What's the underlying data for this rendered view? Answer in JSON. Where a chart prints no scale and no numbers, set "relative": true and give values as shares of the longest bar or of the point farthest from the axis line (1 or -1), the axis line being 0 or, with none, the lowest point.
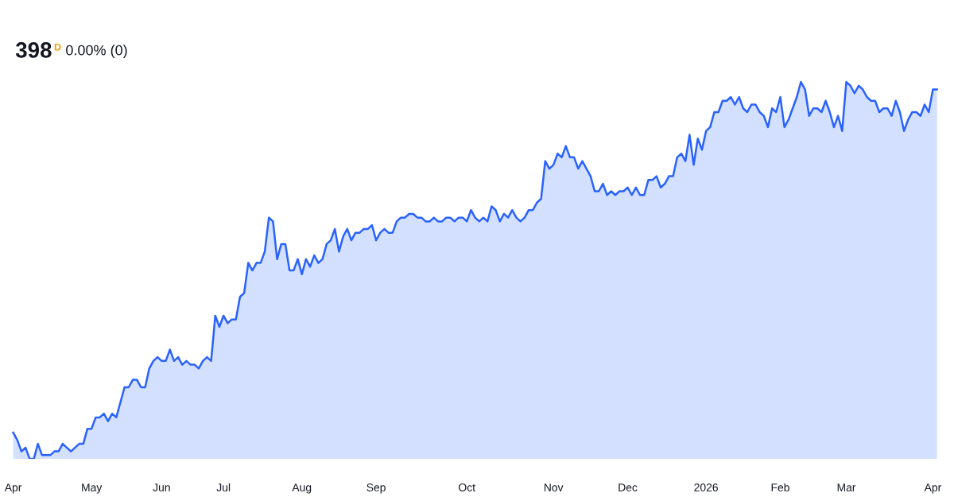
{
  "chart_data": {
    "type": "area",
    "title": "398",
    "subtitle": "0.00% (0)",
    "annotations": [
      "D"
    ],
    "relative": true,
    "tick_labels": "x",
    "categories": [
      "Apr",
      null,
      null,
      null,
      null,
      null,
      null,
      null,
      null,
      null,
      null,
      null,
      null,
      null,
      null,
      null,
      null,
      null,
      null,
      "May",
      null,
      null,
      null,
      null,
      null,
      null,
      null,
      null,
      null,
      null,
      null,
      null,
      null,
      null,
      null,
      null,
      "Jun",
      null,
      null,
      null,
      null,
      null,
      null,
      null,
      null,
      null,
      null,
      null,
      null,
      null,
      null,
      "Jul",
      null,
      null,
      null,
      null,
      null,
      null,
      null,
      null,
      null,
      null,
      null,
      null,
      null,
      null,
      null,
      null,
      null,
      null,
      "Aug",
      null,
      null,
      null,
      null,
      null,
      null,
      null,
      null,
      null,
      null,
      null,
      null,
      null,
      null,
      null,
      null,
      null,
      "Sep",
      null,
      null,
      null,
      null,
      null,
      null,
      null,
      null,
      null,
      null,
      null,
      null,
      null,
      null,
      null,
      null,
      null,
      null,
      null,
      null,
      null,
      "Oct",
      null,
      null,
      null,
      null,
      null,
      null,
      null,
      null,
      null,
      null,
      null,
      null,
      null,
      null,
      null,
      null,
      null,
      null,
      null,
      null,
      "Nov",
      null,
      null,
      null,
      null,
      null,
      null,
      null,
      null,
      null,
      null,
      null,
      null,
      null,
      null,
      null,
      null,
      null,
      "Dec",
      null,
      null,
      null,
      null,
      null,
      null,
      null,
      null,
      null,
      null,
      null,
      null,
      null,
      null,
      null,
      null,
      null,
      null,
      "2026",
      null,
      null,
      null,
      null,
      null,
      null,
      null,
      null,
      null,
      null,
      null,
      null,
      null,
      null,
      null,
      null,
      null,
      "Feb",
      null,
      null,
      null,
      null,
      null,
      null,
      null,
      null,
      null,
      null,
      null,
      null,
      null,
      null,
      null,
      "Mar",
      null,
      null,
      null,
      null,
      null,
      null,
      null,
      null,
      null,
      null,
      null,
      null,
      null,
      null,
      null,
      null,
      null,
      null,
      null,
      null,
      "Apr",
      null
    ],
    "series": [
      {
        "color": "#2962ff",
        "values": [
          0.07,
          0.05,
          0.02,
          0.03,
          0,
          0,
          0.04,
          0.01,
          0.01,
          0.01,
          0.02,
          0.02,
          0.04,
          0.03,
          0.02,
          0.03,
          0.04,
          0.04,
          0.08,
          0.08,
          0.11,
          0.11,
          0.12,
          0.1,
          0.12,
          0.11,
          0.15,
          0.19,
          0.19,
          0.21,
          0.21,
          0.19,
          0.19,
          0.24,
          0.26,
          0.27,
          0.26,
          0.26,
          0.29,
          0.26,
          0.27,
          0.25,
          0.26,
          0.25,
          0.25,
          0.24,
          0.26,
          0.27,
          0.26,
          0.38,
          0.35,
          0.38,
          0.36,
          0.37,
          0.37,
          0.43,
          0.44,
          0.52,
          0.5,
          0.52,
          0.52,
          0.55,
          0.64,
          0.63,
          0.53,
          0.57,
          0.57,
          0.5,
          0.5,
          0.53,
          0.49,
          0.53,
          0.51,
          0.54,
          0.52,
          0.53,
          0.57,
          0.58,
          0.61,
          0.55,
          0.59,
          0.61,
          0.58,
          0.6,
          0.6,
          0.61,
          0.61,
          0.62,
          0.58,
          0.6,
          0.61,
          0.6,
          0.6,
          0.63,
          0.64,
          0.64,
          0.65,
          0.65,
          0.64,
          0.64,
          0.63,
          0.63,
          0.64,
          0.63,
          0.63,
          0.64,
          0.64,
          0.63,
          0.64,
          0.64,
          0.63,
          0.66,
          0.64,
          0.63,
          0.64,
          0.63,
          0.67,
          0.66,
          0.63,
          0.65,
          0.64,
          0.66,
          0.64,
          0.63,
          0.64,
          0.66,
          0.66,
          0.68,
          0.69,
          0.79,
          0.77,
          0.78,
          0.81,
          0.8,
          0.83,
          0.8,
          0.8,
          0.77,
          0.79,
          0.77,
          0.75,
          0.71,
          0.71,
          0.73,
          0.7,
          0.71,
          0.7,
          0.71,
          0.71,
          0.72,
          0.7,
          0.72,
          0.7,
          0.7,
          0.74,
          0.74,
          0.75,
          0.72,
          0.73,
          0.75,
          0.75,
          0.8,
          0.81,
          0.79,
          0.86,
          0.78,
          0.85,
          0.82,
          0.87,
          0.88,
          0.92,
          0.92,
          0.95,
          0.95,
          0.96,
          0.94,
          0.96,
          0.93,
          0.92,
          0.94,
          0.94,
          0.92,
          0.91,
          0.88,
          0.93,
          0.92,
          0.96,
          0.88,
          0.9,
          0.93,
          0.96,
          1.0,
          0.98,
          0.91,
          0.93,
          0.93,
          0.92,
          0.95,
          0.92,
          0.88,
          0.91,
          0.87,
          1.0,
          0.99,
          0.97,
          0.99,
          0.98,
          0.96,
          0.95,
          0.95,
          0.92,
          0.93,
          0.93,
          0.91,
          0.95,
          0.92,
          0.87,
          0.9,
          0.92,
          0.92,
          0.91,
          0.94,
          0.92,
          0.98,
          0.98
        ]
      }
    ]
  }
}
